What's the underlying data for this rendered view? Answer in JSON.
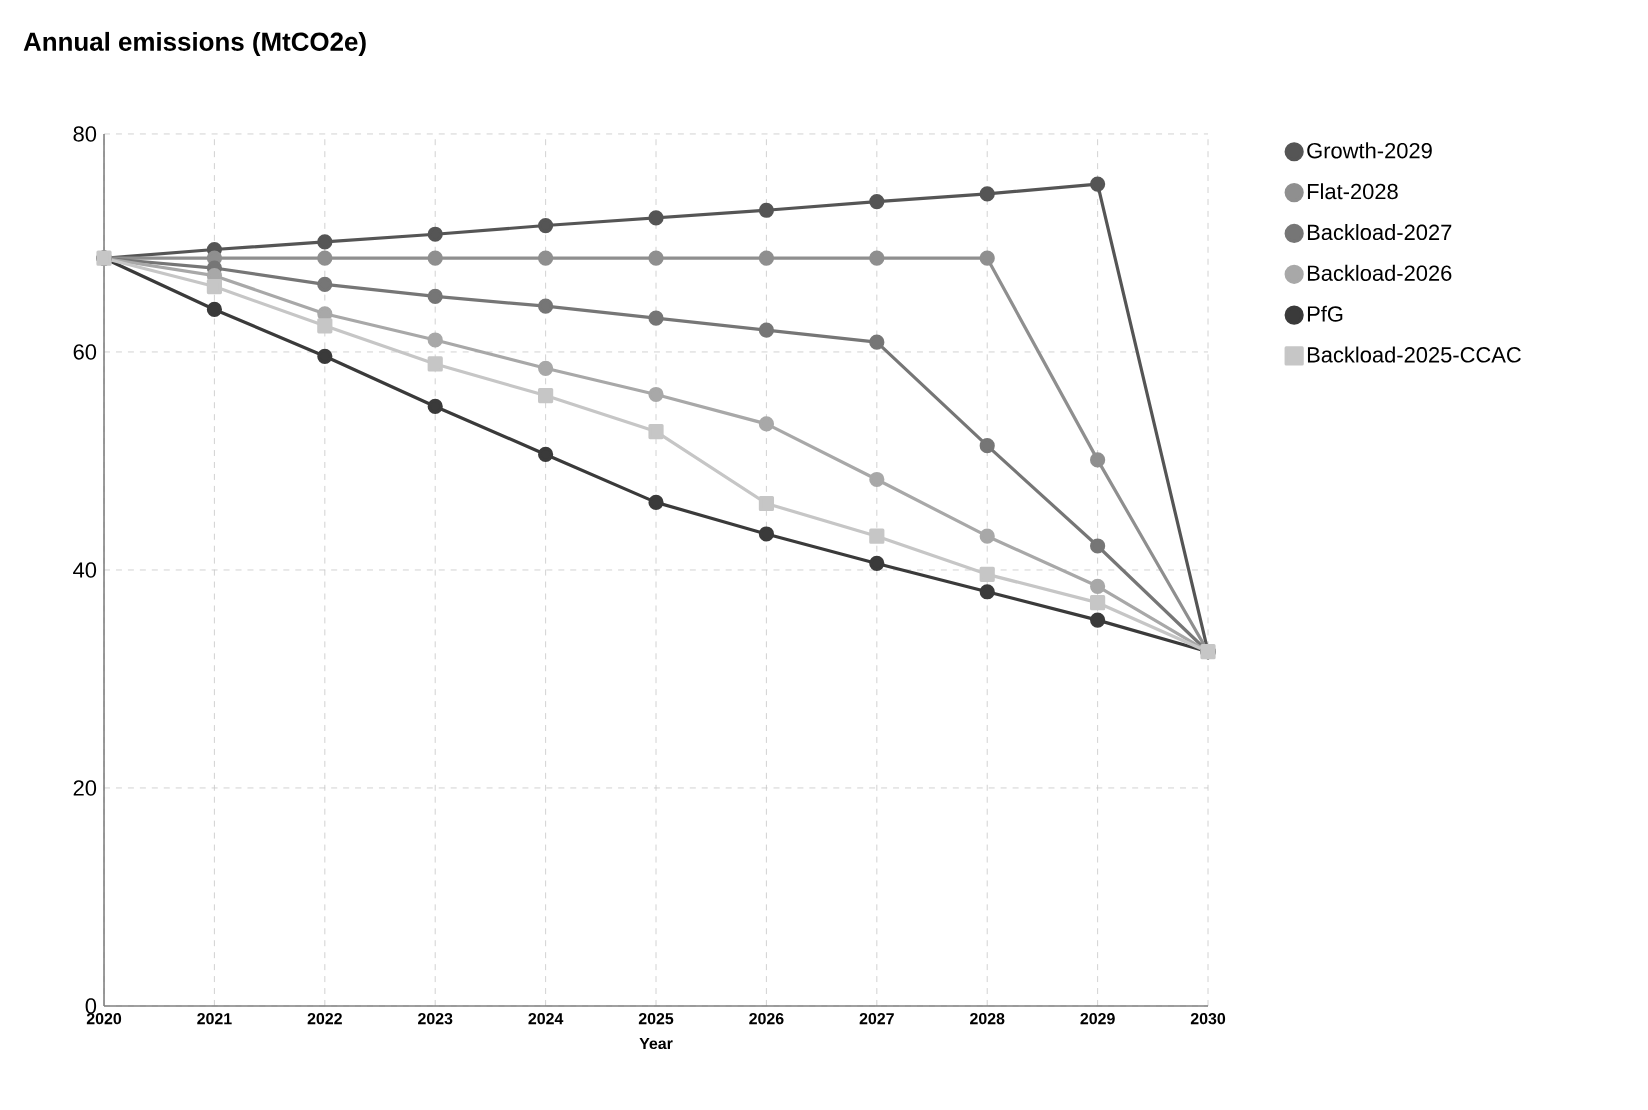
{
  "chart_data": {
    "type": "line",
    "title": "Annual emissions (MtCO2e)",
    "xlabel": "Year",
    "x": [
      2020,
      2021,
      2022,
      2023,
      2024,
      2025,
      2026,
      2027,
      2028,
      2029,
      2030
    ],
    "xlim": [
      2020,
      2030
    ],
    "xticks": [
      2020,
      2021,
      2022,
      2023,
      2024,
      2025,
      2026,
      2027,
      2028,
      2029,
      2030
    ],
    "ylim": [
      0,
      80
    ],
    "yticks": [
      0,
      20,
      40,
      60,
      80
    ],
    "grid": true,
    "legend": "right",
    "marker": "circle",
    "line_style": "solid",
    "series": [
      {
        "name": "Growth-2029",
        "color": "#555555",
        "values": [
          68.6,
          69.4,
          70.1,
          70.8,
          71.6,
          72.3,
          73.0,
          73.8,
          74.5,
          75.4,
          32.5
        ]
      },
      {
        "name": "Flat-2028",
        "color": "#8f8f8f",
        "values": [
          68.6,
          68.6,
          68.6,
          68.6,
          68.6,
          68.6,
          68.6,
          68.6,
          68.6,
          50.1,
          32.5
        ]
      },
      {
        "name": "Backload-2027",
        "color": "#767676",
        "values": [
          68.6,
          67.7,
          66.2,
          65.1,
          64.2,
          63.1,
          62.0,
          60.9,
          51.4,
          42.2,
          32.5
        ]
      },
      {
        "name": "Backload-2026",
        "color": "#a8a8a8",
        "values": [
          68.6,
          67.0,
          63.5,
          61.1,
          58.5,
          56.1,
          53.4,
          48.3,
          43.1,
          38.5,
          32.5
        ]
      },
      {
        "name": "PfG",
        "color": "#3a3a3a",
        "values": [
          68.6,
          63.9,
          59.6,
          55.0,
          50.6,
          46.2,
          43.3,
          40.6,
          38.0,
          35.4,
          32.5
        ]
      },
      {
        "name": "Backload-2025-CCAC",
        "color": "#c6c6c6",
        "marker": "square",
        "values": [
          68.6,
          66.0,
          62.4,
          58.9,
          56.0,
          52.7,
          46.1,
          43.1,
          39.6,
          37.0,
          32.5
        ]
      }
    ]
  }
}
